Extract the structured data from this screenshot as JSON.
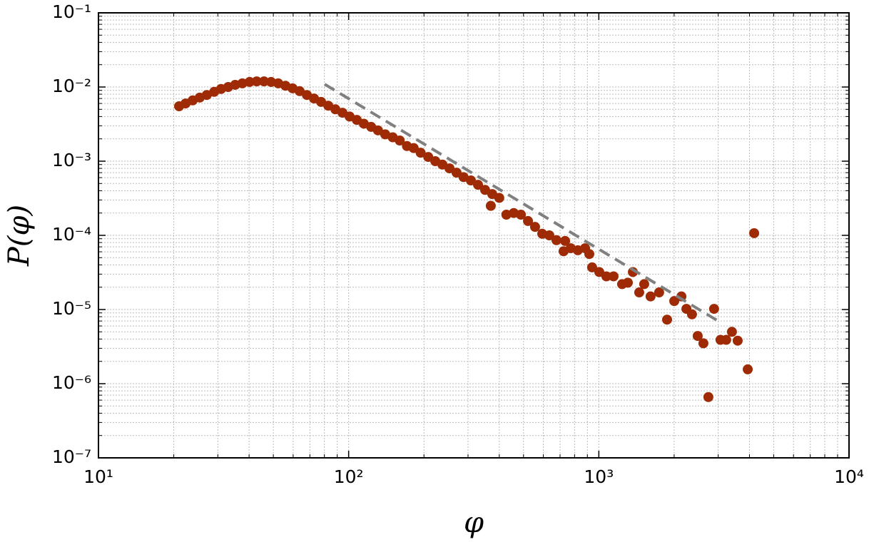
{
  "chart_data": {
    "type": "scatter",
    "xlabel": "φ",
    "ylabel": "P(φ)",
    "xscale": "log",
    "yscale": "log",
    "xlim": [
      10,
      10000
    ],
    "ylim": [
      1e-07,
      0.1
    ],
    "xticks": [
      {
        "value": 10,
        "label": "10¹"
      },
      {
        "value": 100,
        "label": "10²"
      },
      {
        "value": 1000,
        "label": "10³"
      },
      {
        "value": 10000,
        "label": "10⁴"
      }
    ],
    "yticks": [
      {
        "value": 1e-07,
        "label": "10⁻⁷"
      },
      {
        "value": 1e-06,
        "label": "10⁻⁶"
      },
      {
        "value": 1e-05,
        "label": "10⁻⁵"
      },
      {
        "value": 0.0001,
        "label": "10⁻⁴"
      },
      {
        "value": 0.001,
        "label": "10⁻³"
      },
      {
        "value": 0.01,
        "label": "10⁻²"
      },
      {
        "value": 0.1,
        "label": "10⁻¹"
      }
    ],
    "grid": true,
    "minor_grid": true,
    "series": [
      {
        "type": "scatter",
        "color": "#9e2b05",
        "x": [
          21.0,
          22.3,
          23.8,
          25.4,
          27.1,
          29.0,
          30.9,
          33.0,
          35.2,
          37.6,
          40.2,
          42.9,
          45.9,
          49.0,
          52.3,
          55.9,
          59.7,
          63.7,
          68.1,
          72.7,
          77.6,
          82.9,
          88.5,
          94.5,
          100.9,
          107.8,
          115,
          123,
          131,
          140,
          150,
          160,
          171,
          182,
          194,
          208,
          222,
          237,
          253,
          270,
          288,
          308,
          329,
          351,
          370,
          375,
          400,
          427,
          457,
          488,
          521,
          556,
          594,
          634,
          677,
          723,
          733,
          772,
          824,
          881,
          916,
          940,
          1004,
          1072,
          1145,
          1239,
          1306,
          1368,
          1450,
          1518,
          1610,
          1742,
          1874,
          2002,
          2138,
          2239,
          2357,
          2484,
          2618,
          2741,
          2888,
          3064,
          3229,
          3404,
          3589,
          3937,
          4176
        ],
        "y": [
          0.0055,
          0.006,
          0.0066,
          0.0072,
          0.0078,
          0.0086,
          0.0094,
          0.01,
          0.0107,
          0.0112,
          0.0117,
          0.0119,
          0.0119,
          0.0117,
          0.0112,
          0.0104,
          0.0096,
          0.0088,
          0.0078,
          0.007,
          0.0063,
          0.0056,
          0.005,
          0.0045,
          0.004,
          0.0036,
          0.0032,
          0.0029,
          0.0026,
          0.0023,
          0.0021,
          0.0019,
          0.0016,
          0.0015,
          0.0013,
          0.00114,
          0.001,
          0.0009,
          0.0008,
          0.0007,
          0.00061,
          0.00055,
          0.00048,
          0.00041,
          0.00025,
          0.00036,
          0.00032,
          0.00019,
          0.0002,
          0.00019,
          0.000156,
          0.00013,
          0.000105,
          0.0001,
          8.6e-05,
          6.1e-05,
          8.4e-05,
          6.7e-05,
          6.3e-05,
          6.7e-05,
          5.6e-05,
          3.7e-05,
          3.2e-05,
          2.8e-05,
          2.8e-05,
          2.2e-05,
          2.3e-05,
          3.2e-05,
          1.7e-05,
          2.2e-05,
          1.5e-05,
          1.7e-05,
          7.3e-06,
          1.3e-05,
          1.5e-05,
          1.02e-05,
          8.6e-06,
          4.4e-06,
          3.5e-06,
          6.6e-07,
          1.02e-05,
          3.9e-06,
          3.9e-06,
          5e-06,
          3.8e-06,
          1.56e-06,
          0.000107
        ]
      },
      {
        "type": "line",
        "color": "#808080",
        "style": "dashed",
        "x": [
          80.2,
          3064
        ],
        "y": [
          0.0109,
          6.7e-06
        ]
      }
    ]
  }
}
